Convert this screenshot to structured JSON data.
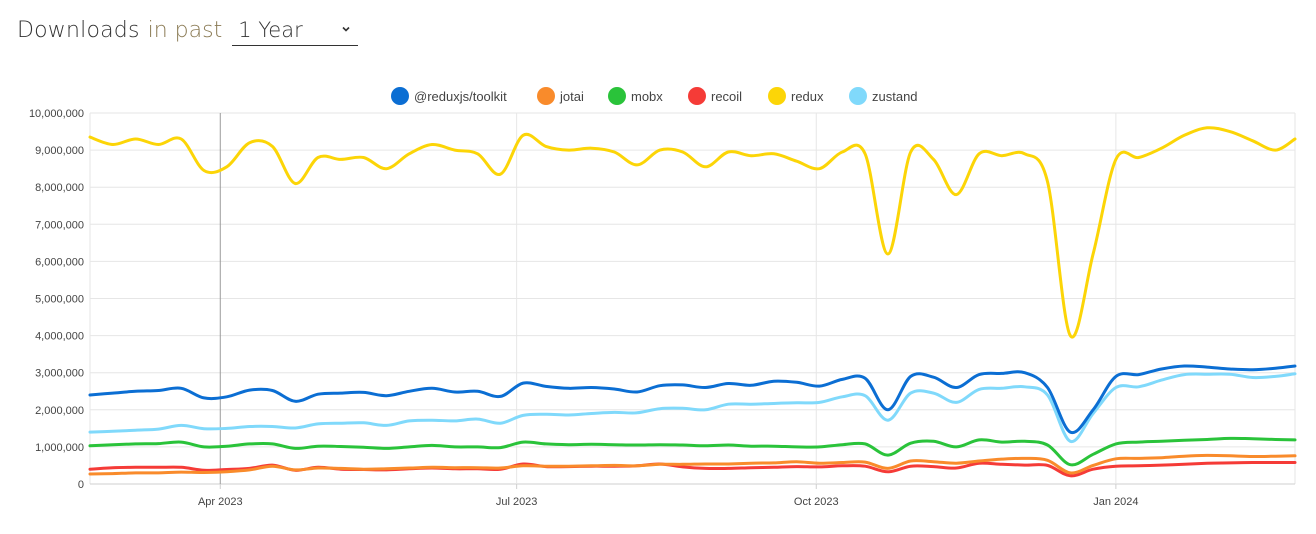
{
  "header": {
    "title": "Downloads",
    "subtitle": "in past",
    "period_selected": "1 Year"
  },
  "colors": {
    "@reduxjs/toolkit": "#0b6ed3",
    "jotai": "#f98b2b",
    "mobx": "#2ac33a",
    "recoil": "#f53b37",
    "redux": "#fcd507",
    "zustand": "#80d9fb"
  },
  "chart_data": {
    "type": "line",
    "title": "",
    "xlabel": "",
    "ylabel": "",
    "ylim": [
      0,
      10000000
    ],
    "yticks": [
      0,
      1000000,
      2000000,
      3000000,
      4000000,
      5000000,
      6000000,
      7000000,
      8000000,
      9000000,
      10000000
    ],
    "ytick_labels": [
      "0",
      "1,000,000",
      "2,000,000",
      "3,000,000",
      "4,000,000",
      "5,000,000",
      "6,000,000",
      "7,000,000",
      "8,000,000",
      "9,000,000",
      "10,000,000"
    ],
    "x_range": [
      "2023-02-20",
      "2024-02-25"
    ],
    "xticks": [
      "2023-04-01",
      "2023-07-01",
      "2023-10-01",
      "2024-01-01"
    ],
    "xtick_labels": [
      "Apr 2023",
      "Jul 2023",
      "Oct 2023",
      "Jan 2024"
    ],
    "grid": true,
    "legend_position": "top",
    "x": [
      "2023-02-20",
      "2023-02-27",
      "2023-03-06",
      "2023-03-13",
      "2023-03-20",
      "2023-03-27",
      "2023-04-03",
      "2023-04-10",
      "2023-04-17",
      "2023-04-24",
      "2023-05-01",
      "2023-05-08",
      "2023-05-15",
      "2023-05-22",
      "2023-05-29",
      "2023-06-05",
      "2023-06-12",
      "2023-06-19",
      "2023-06-26",
      "2023-07-03",
      "2023-07-10",
      "2023-07-17",
      "2023-07-24",
      "2023-07-31",
      "2023-08-07",
      "2023-08-14",
      "2023-08-21",
      "2023-08-28",
      "2023-09-04",
      "2023-09-11",
      "2023-09-18",
      "2023-09-25",
      "2023-10-02",
      "2023-10-09",
      "2023-10-16",
      "2023-10-23",
      "2023-10-30",
      "2023-11-06",
      "2023-11-13",
      "2023-11-20",
      "2023-11-27",
      "2023-12-04",
      "2023-12-11",
      "2023-12-18",
      "2023-12-25",
      "2024-01-01",
      "2024-01-08",
      "2024-01-15",
      "2024-01-22",
      "2024-01-29",
      "2024-02-05",
      "2024-02-12",
      "2024-02-19",
      "2024-02-25"
    ],
    "series": [
      {
        "name": "@reduxjs/toolkit",
        "values": [
          2400000,
          2450000,
          2500000,
          2520000,
          2580000,
          2320000,
          2350000,
          2530000,
          2520000,
          2230000,
          2420000,
          2450000,
          2470000,
          2380000,
          2500000,
          2580000,
          2480000,
          2500000,
          2360000,
          2720000,
          2630000,
          2580000,
          2600000,
          2560000,
          2480000,
          2650000,
          2670000,
          2600000,
          2710000,
          2660000,
          2770000,
          2740000,
          2640000,
          2820000,
          2850000,
          2000000,
          2900000,
          2880000,
          2600000,
          2950000,
          2980000,
          3000000,
          2600000,
          1400000,
          2000000,
          2900000,
          2950000,
          3100000,
          3180000,
          3150000,
          3100000,
          3080000,
          3120000,
          3180000
        ]
      },
      {
        "name": "zustand",
        "values": [
          1400000,
          1420000,
          1450000,
          1480000,
          1580000,
          1490000,
          1500000,
          1550000,
          1550000,
          1510000,
          1620000,
          1640000,
          1650000,
          1580000,
          1700000,
          1720000,
          1700000,
          1750000,
          1640000,
          1850000,
          1880000,
          1860000,
          1900000,
          1930000,
          1920000,
          2030000,
          2040000,
          2000000,
          2150000,
          2150000,
          2170000,
          2190000,
          2200000,
          2350000,
          2380000,
          1720000,
          2450000,
          2450000,
          2200000,
          2550000,
          2580000,
          2620000,
          2400000,
          1150000,
          1900000,
          2600000,
          2620000,
          2800000,
          2950000,
          2960000,
          2960000,
          2870000,
          2900000,
          2970000
        ]
      },
      {
        "name": "mobx",
        "values": [
          1030000,
          1060000,
          1080000,
          1090000,
          1130000,
          1000000,
          1020000,
          1080000,
          1080000,
          960000,
          1020000,
          1010000,
          990000,
          960000,
          1000000,
          1040000,
          1000000,
          1000000,
          980000,
          1130000,
          1080000,
          1060000,
          1070000,
          1060000,
          1050000,
          1060000,
          1050000,
          1030000,
          1050000,
          1020000,
          1020000,
          1000000,
          1000000,
          1060000,
          1080000,
          780000,
          1100000,
          1150000,
          1000000,
          1190000,
          1130000,
          1150000,
          1050000,
          520000,
          800000,
          1080000,
          1130000,
          1150000,
          1180000,
          1200000,
          1230000,
          1220000,
          1200000,
          1190000
        ]
      },
      {
        "name": "jotai",
        "values": [
          270000,
          280000,
          300000,
          300000,
          320000,
          310000,
          330000,
          380000,
          480000,
          380000,
          430000,
          420000,
          400000,
          410000,
          430000,
          450000,
          440000,
          440000,
          430000,
          490000,
          480000,
          480000,
          490000,
          500000,
          490000,
          530000,
          530000,
          540000,
          540000,
          560000,
          570000,
          600000,
          560000,
          580000,
          590000,
          420000,
          620000,
          600000,
          560000,
          620000,
          670000,
          690000,
          640000,
          300000,
          500000,
          680000,
          690000,
          710000,
          750000,
          770000,
          760000,
          740000,
          750000,
          760000
        ]
      },
      {
        "name": "recoil",
        "values": [
          400000,
          440000,
          450000,
          450000,
          450000,
          370000,
          390000,
          420000,
          510000,
          370000,
          450000,
          400000,
          390000,
          380000,
          410000,
          430000,
          410000,
          410000,
          400000,
          540000,
          470000,
          470000,
          480000,
          480000,
          490000,
          540000,
          460000,
          420000,
          420000,
          440000,
          450000,
          470000,
          460000,
          490000,
          480000,
          330000,
          480000,
          470000,
          430000,
          560000,
          530000,
          510000,
          500000,
          220000,
          400000,
          480000,
          490000,
          510000,
          530000,
          560000,
          570000,
          580000,
          580000,
          580000
        ]
      },
      {
        "name": "redux",
        "values": [
          9350000,
          9150000,
          9300000,
          9150000,
          9300000,
          8450000,
          8550000,
          9200000,
          9100000,
          8100000,
          8800000,
          8750000,
          8800000,
          8500000,
          8900000,
          9150000,
          9000000,
          8900000,
          8350000,
          9400000,
          9100000,
          9000000,
          9050000,
          8950000,
          8600000,
          9000000,
          8950000,
          8550000,
          8950000,
          8850000,
          8900000,
          8700000,
          8500000,
          8950000,
          8900000,
          6200000,
          8950000,
          8750000,
          7800000,
          8900000,
          8850000,
          8900000,
          8150000,
          4000000,
          6200000,
          8750000,
          8800000,
          9050000,
          9400000,
          9600000,
          9500000,
          9250000,
          9000000,
          9300000
        ]
      }
    ]
  }
}
